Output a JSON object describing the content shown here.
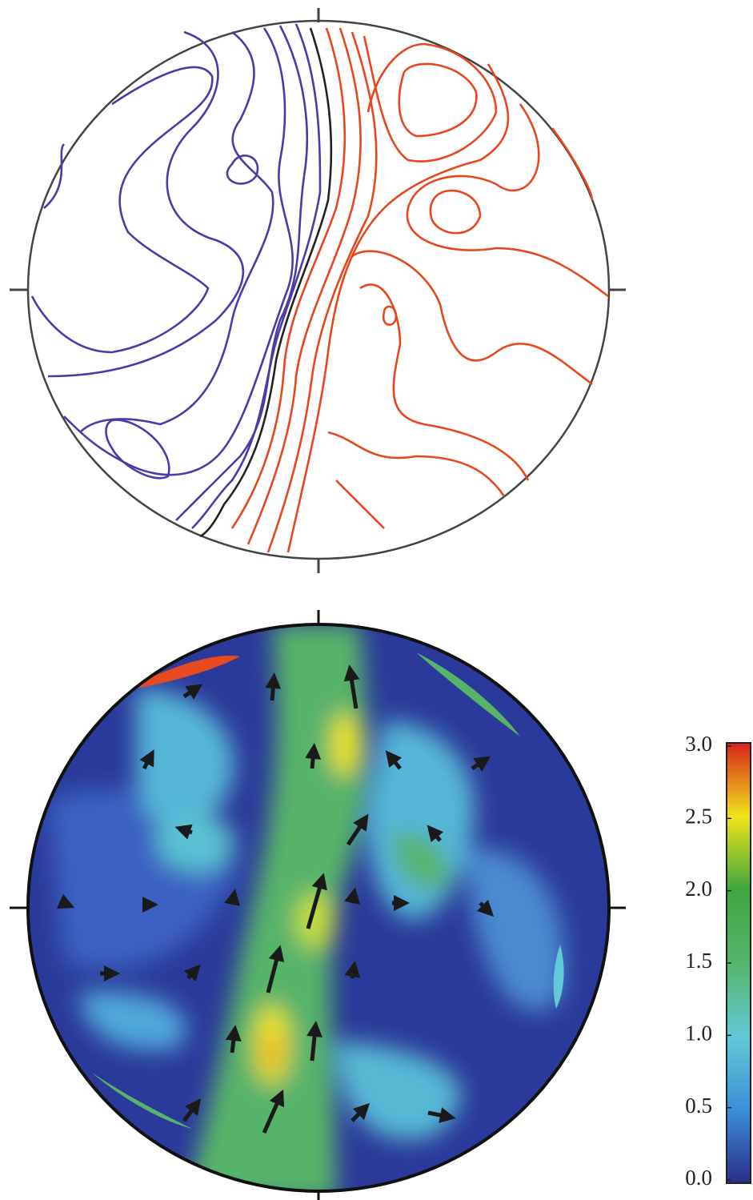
{
  "chart_data": {
    "type": "colorbar",
    "clim": [
      0,
      3
    ],
    "cticks": [
      {
        "value": 0,
        "label": "0.0"
      },
      0.5,
      {
        "value": 1,
        "label": "1.0"
      },
      1.5,
      {
        "value": 2,
        "label": "2.0"
      },
      2.5,
      {
        "value": 3,
        "label": "3.0"
      }
    ],
    "colors": [
      "#2a2c88",
      "#3c8fd8",
      "#62c9d6",
      "#56b56a",
      "#3fa63f",
      "#f0e41a",
      "#d8231e"
    ]
  }
}
